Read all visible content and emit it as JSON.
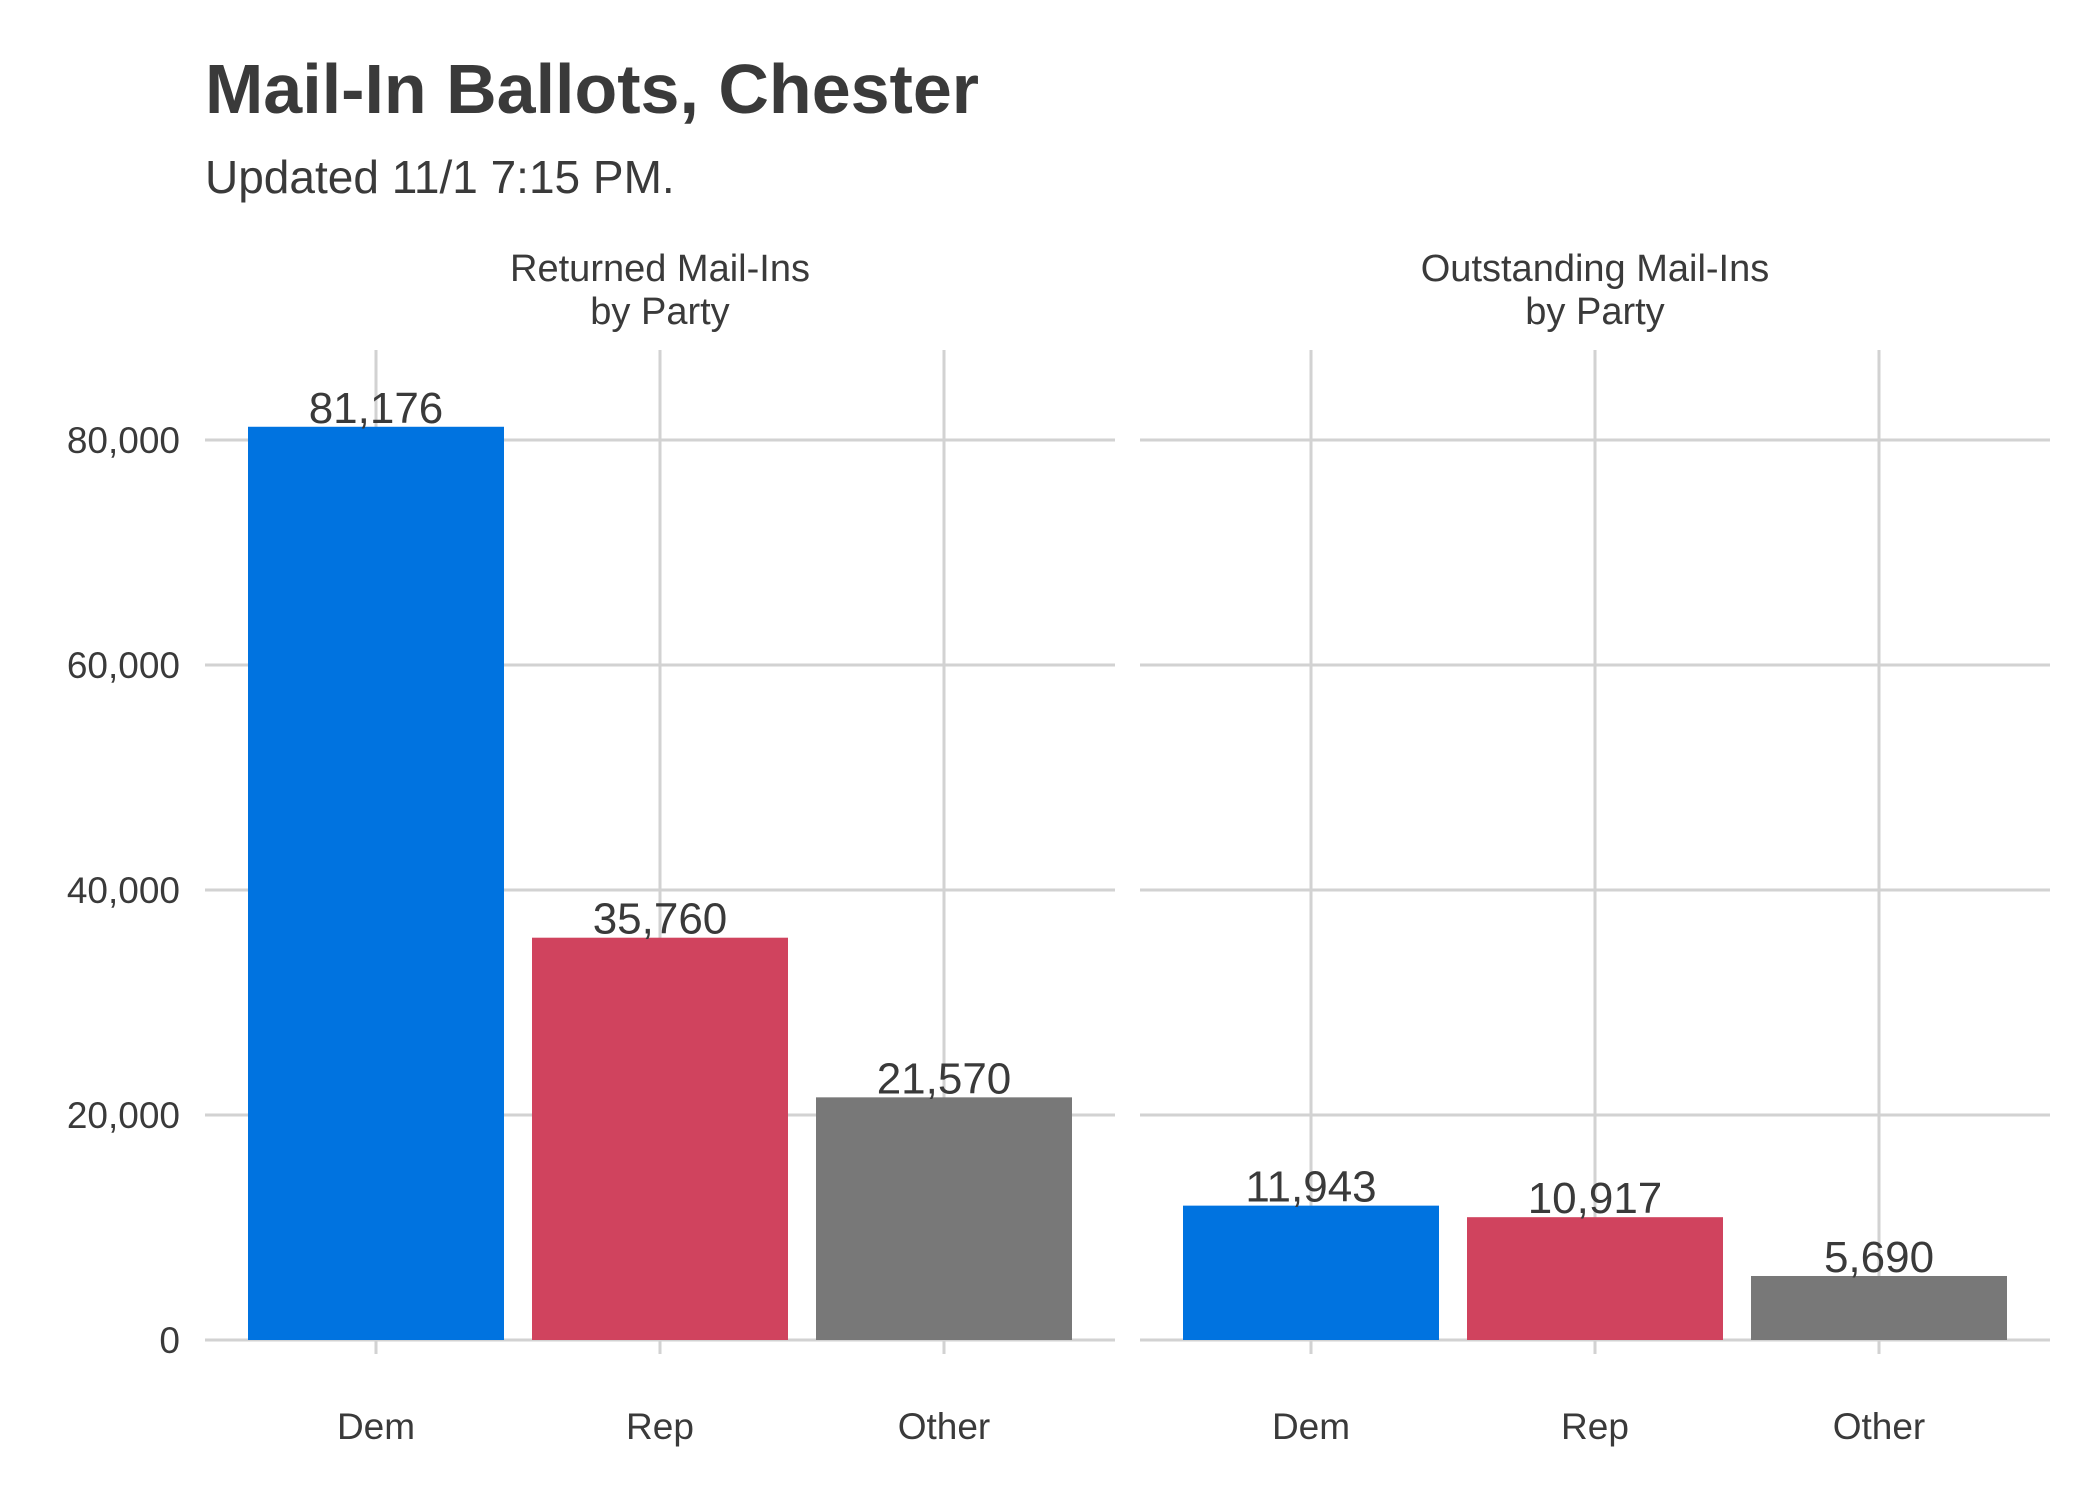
{
  "chart_data": {
    "type": "bar",
    "title": "Mail-In Ballots, Chester",
    "subtitle": "Updated 11/1 7:15 PM.",
    "categories": [
      "Dem",
      "Rep",
      "Other"
    ],
    "colors": {
      "Dem": "#0073e0",
      "Rep": "#d0435e",
      "Other": "#787878"
    },
    "ylim": [
      0,
      88000
    ],
    "yticks": [
      0,
      20000,
      40000,
      60000,
      80000
    ],
    "ytick_labels": [
      "0",
      "20,000",
      "40,000",
      "60,000",
      "80,000"
    ],
    "grid": true,
    "panels": [
      {
        "title_lines": [
          "Returned Mail-Ins",
          "by Party"
        ],
        "values": [
          81176,
          35760,
          21570
        ],
        "value_labels": [
          "81,176",
          "35,760",
          "21,570"
        ]
      },
      {
        "title_lines": [
          "Outstanding Mail-Ins",
          "by Party"
        ],
        "values": [
          11943,
          10917,
          5690
        ],
        "value_labels": [
          "11,943",
          "10,917",
          "5,690"
        ]
      }
    ]
  }
}
